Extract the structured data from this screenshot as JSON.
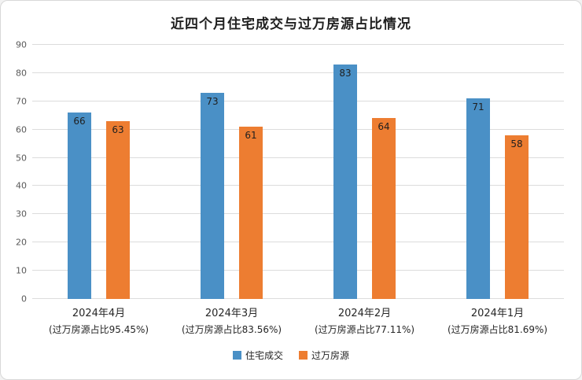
{
  "chart_data": {
    "type": "bar",
    "title": "近四个月住宅成交与过万房源占比情况",
    "categories": [
      "2024年4月",
      "2024年3月",
      "2024年2月",
      "2024年1月"
    ],
    "category_sublabels": [
      "(过万房源占比95.45%)",
      "(过万房源占比83.56%)",
      "(过万房源占比77.11%)",
      "(过万房源占比81.69%)"
    ],
    "series": [
      {
        "name": "住宅成交",
        "color": "#4A90C6",
        "values": [
          66,
          73,
          83,
          71
        ]
      },
      {
        "name": "过万房源",
        "color": "#ED7D31",
        "values": [
          63,
          61,
          64,
          58
        ]
      }
    ],
    "ylim": [
      0,
      90
    ],
    "y_ticks": [
      0,
      10,
      20,
      30,
      40,
      50,
      60,
      70,
      80,
      90
    ],
    "grid": true,
    "legend_position": "bottom",
    "styles": {
      "grid_color": "#dcdcdc",
      "tick_color": "#595959",
      "label_color": "#1f1f1f",
      "title_color": "#1f1f1f"
    }
  }
}
